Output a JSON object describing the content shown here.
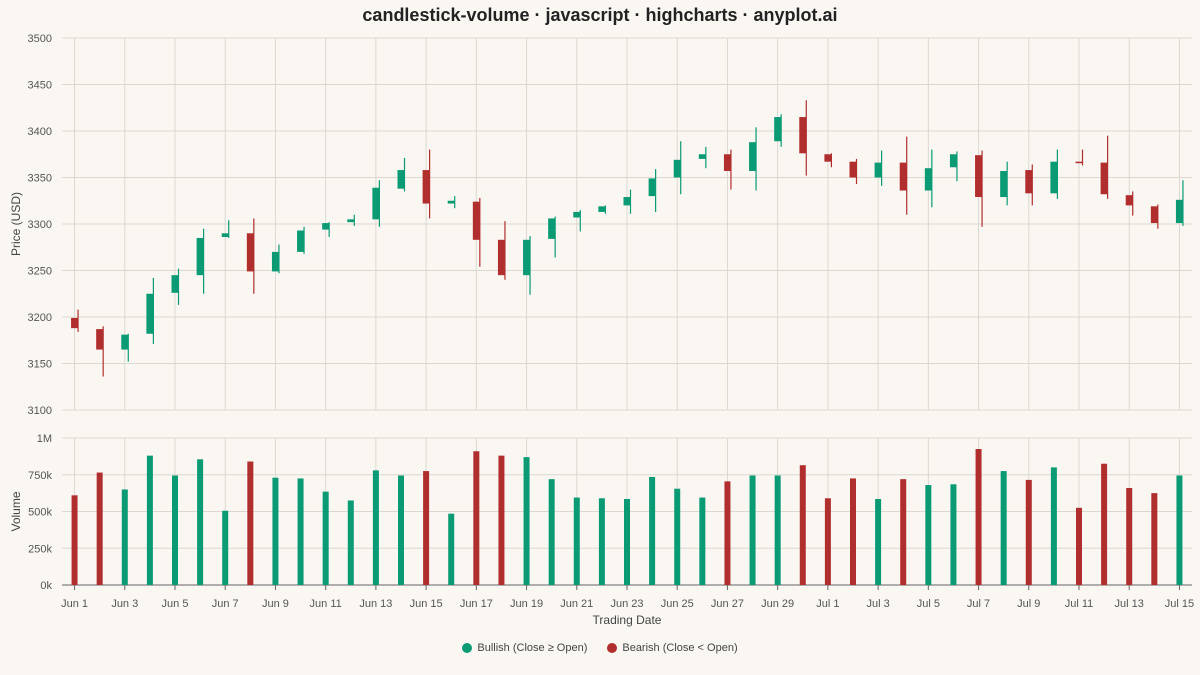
{
  "chart_data": {
    "type": "candlestick-volume",
    "title": "candlestick-volume · javascript · highcharts · anyplot.ai",
    "xlabel": "Trading Date",
    "ylabel_price": "Price (USD)",
    "ylabel_volume": "Volume",
    "price_ylim": [
      3100,
      3500
    ],
    "price_ticks": [
      "3100",
      "3150",
      "3200",
      "3250",
      "3300",
      "3350",
      "3400",
      "3450",
      "3500"
    ],
    "volume_ylim": [
      0,
      1000000
    ],
    "volume_ticks": [
      "0k",
      "250k",
      "500k",
      "750k",
      "1M"
    ],
    "x_tick_labels": [
      "Jun 1",
      "Jun 3",
      "Jun 5",
      "Jun 7",
      "Jun 9",
      "Jun 11",
      "Jun 13",
      "Jun 15",
      "Jun 17",
      "Jun 19",
      "Jun 21",
      "Jun 23",
      "Jun 25",
      "Jun 27",
      "Jun 29",
      "Jul 1",
      "Jul 3",
      "Jul 5",
      "Jul 7",
      "Jul 9",
      "Jul 11",
      "Jul 13",
      "Jul 15"
    ],
    "grid": true,
    "legend_position": "bottom-center",
    "colors": {
      "bullish": "#0a9a74",
      "bearish": "#b02e2e"
    },
    "legend": [
      {
        "label": "Bullish (Close ≥ Open)",
        "color": "#0a9a74"
      },
      {
        "label": "Bearish (Close < Open)",
        "color": "#b02e2e"
      }
    ],
    "candles": [
      {
        "date": "Jun 1",
        "open": 3199,
        "high": 3208,
        "low": 3184,
        "close": 3188,
        "volume": 610000
      },
      {
        "date": "Jun 2",
        "open": 3187,
        "high": 3190,
        "low": 3136,
        "close": 3165,
        "volume": 765000
      },
      {
        "date": "Jun 3",
        "open": 3165,
        "high": 3182,
        "low": 3152,
        "close": 3181,
        "volume": 650000
      },
      {
        "date": "Jun 4",
        "open": 3182,
        "high": 3242,
        "low": 3171,
        "close": 3225,
        "volume": 880000
      },
      {
        "date": "Jun 5",
        "open": 3226,
        "high": 3252,
        "low": 3213,
        "close": 3245,
        "volume": 745000
      },
      {
        "date": "Jun 6",
        "open": 3245,
        "high": 3295,
        "low": 3225,
        "close": 3285,
        "volume": 855000
      },
      {
        "date": "Jun 7",
        "open": 3286,
        "high": 3304,
        "low": 3285,
        "close": 3290,
        "volume": 505000
      },
      {
        "date": "Jun 8",
        "open": 3290,
        "high": 3306,
        "low": 3225,
        "close": 3249,
        "volume": 840000
      },
      {
        "date": "Jun 9",
        "open": 3249,
        "high": 3278,
        "low": 3247,
        "close": 3270,
        "volume": 730000
      },
      {
        "date": "Jun 10",
        "open": 3270,
        "high": 3297,
        "low": 3268,
        "close": 3293,
        "volume": 725000
      },
      {
        "date": "Jun 11",
        "open": 3294,
        "high": 3302,
        "low": 3286,
        "close": 3301,
        "volume": 635000
      },
      {
        "date": "Jun 12",
        "open": 3302,
        "high": 3310,
        "low": 3298,
        "close": 3305,
        "volume": 575000
      },
      {
        "date": "Jun 13",
        "open": 3305,
        "high": 3347,
        "low": 3297,
        "close": 3339,
        "volume": 780000
      },
      {
        "date": "Jun 14",
        "open": 3338,
        "high": 3371,
        "low": 3335,
        "close": 3358,
        "volume": 745000
      },
      {
        "date": "Jun 15",
        "open": 3358,
        "high": 3380,
        "low": 3306,
        "close": 3322,
        "volume": 775000
      },
      {
        "date": "Jun 16",
        "open": 3322,
        "high": 3330,
        "low": 3317,
        "close": 3325,
        "volume": 485000
      },
      {
        "date": "Jun 17",
        "open": 3324,
        "high": 3328,
        "low": 3254,
        "close": 3283,
        "volume": 910000
      },
      {
        "date": "Jun 18",
        "open": 3283,
        "high": 3303,
        "low": 3240,
        "close": 3245,
        "volume": 880000
      },
      {
        "date": "Jun 19",
        "open": 3245,
        "high": 3287,
        "low": 3224,
        "close": 3283,
        "volume": 870000
      },
      {
        "date": "Jun 20",
        "open": 3284,
        "high": 3308,
        "low": 3264,
        "close": 3306,
        "volume": 720000
      },
      {
        "date": "Jun 21",
        "open": 3307,
        "high": 3315,
        "low": 3292,
        "close": 3313,
        "volume": 595000
      },
      {
        "date": "Jun 22",
        "open": 3313,
        "high": 3320,
        "low": 3311,
        "close": 3319,
        "volume": 590000
      },
      {
        "date": "Jun 23",
        "open": 3320,
        "high": 3337,
        "low": 3311,
        "close": 3329,
        "volume": 585000
      },
      {
        "date": "Jun 24",
        "open": 3330,
        "high": 3359,
        "low": 3313,
        "close": 3349,
        "volume": 735000
      },
      {
        "date": "Jun 25",
        "open": 3350,
        "high": 3389,
        "low": 3332,
        "close": 3369,
        "volume": 655000
      },
      {
        "date": "Jun 26",
        "open": 3370,
        "high": 3383,
        "low": 3360,
        "close": 3375,
        "volume": 595000
      },
      {
        "date": "Jun 27",
        "open": 3375,
        "high": 3380,
        "low": 3337,
        "close": 3357,
        "volume": 705000
      },
      {
        "date": "Jun 28",
        "open": 3357,
        "high": 3404,
        "low": 3336,
        "close": 3388,
        "volume": 745000
      },
      {
        "date": "Jun 29",
        "open": 3389,
        "high": 3418,
        "low": 3383,
        "close": 3415,
        "volume": 745000
      },
      {
        "date": "Jun 30",
        "open": 3415,
        "high": 3433,
        "low": 3352,
        "close": 3376,
        "volume": 815000
      },
      {
        "date": "Jul 1",
        "open": 3375,
        "high": 3376,
        "low": 3361,
        "close": 3367,
        "volume": 590000
      },
      {
        "date": "Jul 2",
        "open": 3367,
        "high": 3370,
        "low": 3343,
        "close": 3350,
        "volume": 725000
      },
      {
        "date": "Jul 3",
        "open": 3350,
        "high": 3379,
        "low": 3341,
        "close": 3366,
        "volume": 585000
      },
      {
        "date": "Jul 4",
        "open": 3366,
        "high": 3394,
        "low": 3310,
        "close": 3336,
        "volume": 720000
      },
      {
        "date": "Jul 5",
        "open": 3336,
        "high": 3380,
        "low": 3318,
        "close": 3360,
        "volume": 680000
      },
      {
        "date": "Jul 6",
        "open": 3361,
        "high": 3378,
        "low": 3346,
        "close": 3375,
        "volume": 685000
      },
      {
        "date": "Jul 7",
        "open": 3374,
        "high": 3379,
        "low": 3297,
        "close": 3329,
        "volume": 925000
      },
      {
        "date": "Jul 8",
        "open": 3329,
        "high": 3367,
        "low": 3320,
        "close": 3357,
        "volume": 775000
      },
      {
        "date": "Jul 9",
        "open": 3358,
        "high": 3364,
        "low": 3320,
        "close": 3333,
        "volume": 715000
      },
      {
        "date": "Jul 10",
        "open": 3333,
        "high": 3380,
        "low": 3327,
        "close": 3367,
        "volume": 800000
      },
      {
        "date": "Jul 11",
        "open": 3367,
        "high": 3380,
        "low": 3363,
        "close": 3366,
        "volume": 525000
      },
      {
        "date": "Jul 12",
        "open": 3366,
        "high": 3395,
        "low": 3327,
        "close": 3332,
        "volume": 825000
      },
      {
        "date": "Jul 13",
        "open": 3331,
        "high": 3335,
        "low": 3309,
        "close": 3320,
        "volume": 660000
      },
      {
        "date": "Jul 14",
        "open": 3319,
        "high": 3321,
        "low": 3295,
        "close": 3301,
        "volume": 625000
      },
      {
        "date": "Jul 15",
        "open": 3301,
        "high": 3347,
        "low": 3298,
        "close": 3326,
        "volume": 745000
      }
    ]
  }
}
